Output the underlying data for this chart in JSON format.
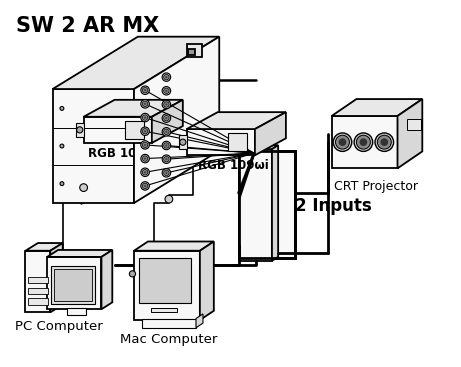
{
  "title": "SW 2 AR MX",
  "title_fontsize": 15,
  "background_color": "#ffffff",
  "text_color": "#000000",
  "line_color": "#000000",
  "face_light": "#f8f8f8",
  "face_mid": "#e8e8e8",
  "face_dark": "#d8d8d8",
  "labels": {
    "crt_projector": "CRT Projector",
    "pc_computer": "PC Computer",
    "mac_computer": "Mac Computer",
    "rgb109_left": "RGB 109ωi",
    "rgb109_right": "RGB 109ωi",
    "two_inputs": "2 Inputs"
  }
}
